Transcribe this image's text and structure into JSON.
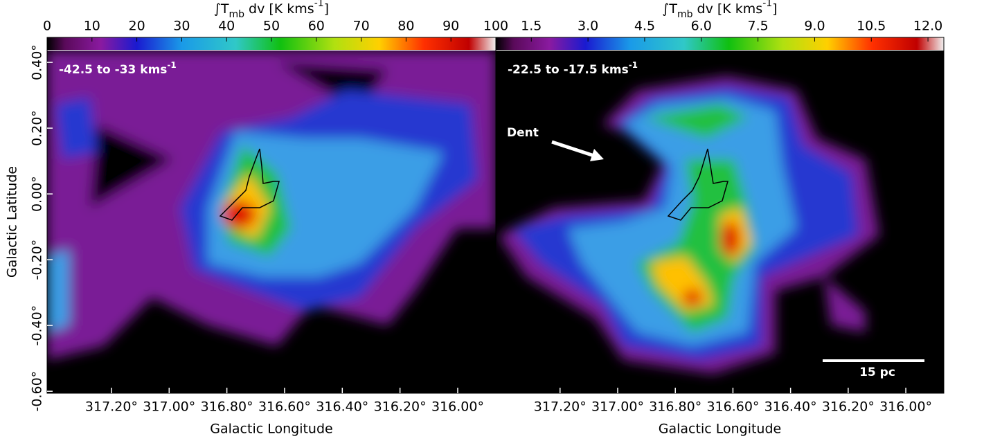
{
  "chart_data": [
    {
      "type": "heatmap",
      "colorbar_label_parts": [
        "∫T",
        "mb",
        " dv [K kms",
        "-1",
        "]"
      ],
      "clim": [
        0,
        100
      ],
      "cticks": [
        0,
        10,
        20,
        30,
        40,
        50,
        60,
        70,
        80,
        90,
        100
      ],
      "annotation_parts": [
        "-42.5 to -33  kms",
        "-1"
      ],
      "xlabel": "Galactic Longitude",
      "ylabel": "Galactic Latitude",
      "xlim": [
        317.423,
        315.868
      ],
      "xticks": [
        {
          "value": 317.2,
          "label": "317.20°"
        },
        {
          "value": 317.0,
          "label": "317.00°"
        },
        {
          "value": 316.8,
          "label": "316.80°"
        },
        {
          "value": 316.6,
          "label": "316.60°"
        },
        {
          "value": 316.4,
          "label": "316.40°"
        },
        {
          "value": 316.2,
          "label": "316.20°"
        },
        {
          "value": 316.0,
          "label": "316.00°"
        }
      ],
      "ylim": [
        -0.606,
        0.436
      ],
      "yticks": [
        {
          "value": 0.4,
          "label": "0.40°"
        },
        {
          "value": 0.2,
          "label": "0.20°"
        },
        {
          "value": 0.0,
          "label": "0.00°"
        },
        {
          "value": -0.2,
          "label": "-0.20°"
        },
        {
          "value": -0.4,
          "label": "-0.40°"
        },
        {
          "value": -0.6,
          "label": "-0.60°"
        }
      ]
    },
    {
      "type": "heatmap",
      "colorbar_label_parts": [
        "∫T",
        "mb",
        " dv [K kms",
        "-1",
        "]"
      ],
      "clim": [
        0.56,
        12.42
      ],
      "cticks": [
        1.5,
        {
          "value": 3,
          "label": "3.0"
        },
        4.5,
        {
          "value": 6,
          "label": "6.0"
        },
        7.5,
        {
          "value": 9,
          "label": "9.0"
        },
        10.5,
        {
          "value": 12,
          "label": "12.0"
        }
      ],
      "annotation_parts": [
        "-22.5 to -17.5  kms",
        "-1"
      ],
      "annotations": [
        "Dent",
        "15 pc"
      ],
      "xlabel": "Galactic Longitude",
      "xlim": [
        317.423,
        315.868
      ],
      "xticks": [
        {
          "value": 317.2,
          "label": "317.20°"
        },
        {
          "value": 317.0,
          "label": "317.00°"
        },
        {
          "value": 316.8,
          "label": "316.80°"
        },
        {
          "value": 316.6,
          "label": "316.60°"
        },
        {
          "value": 316.4,
          "label": "316.40°"
        },
        {
          "value": 316.2,
          "label": "316.20°"
        },
        {
          "value": 316.0,
          "label": "316.00°"
        }
      ],
      "ylim": [
        -0.606,
        0.436
      ]
    }
  ]
}
